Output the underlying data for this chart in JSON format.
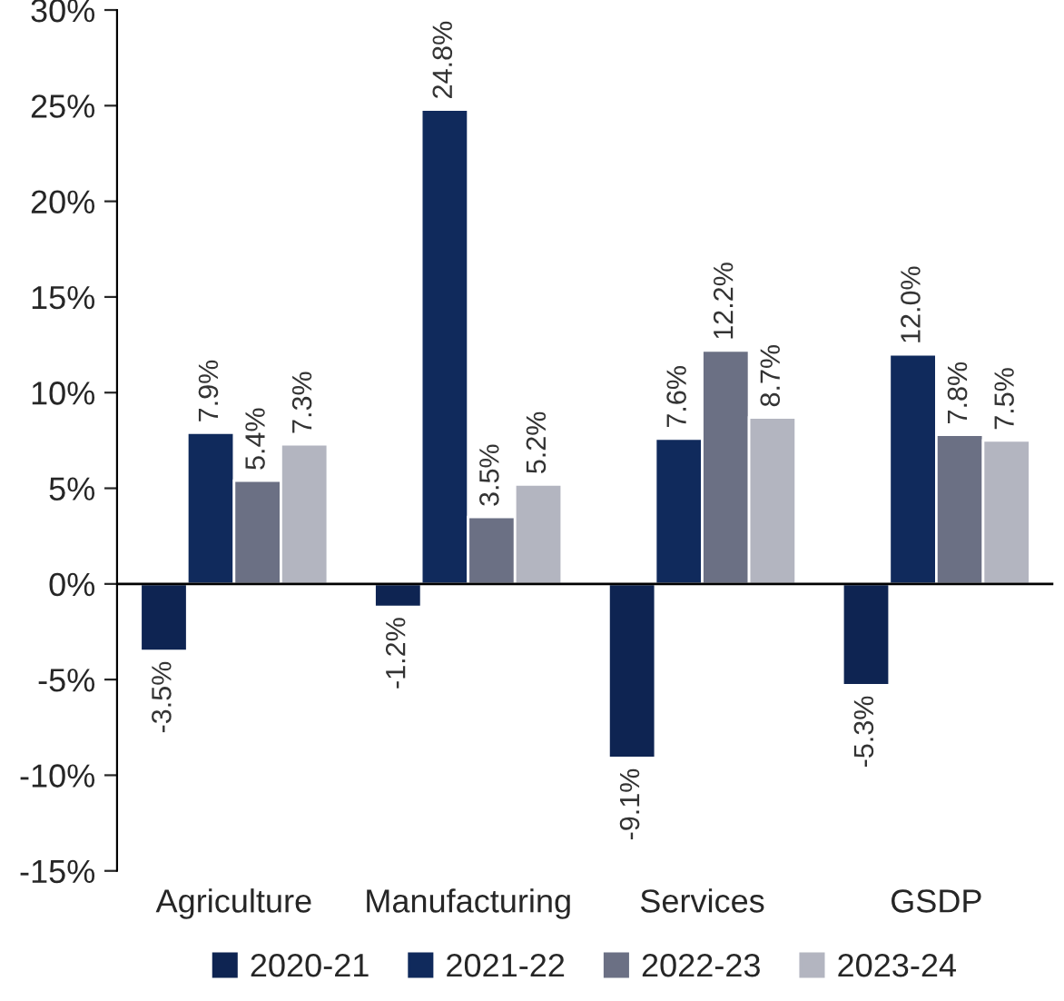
{
  "chart_data": {
    "type": "bar",
    "categories": [
      "Agriculture",
      "Manufacturing",
      "Services",
      "GSDP"
    ],
    "series": [
      {
        "name": "2020-21",
        "color": "#0e2452",
        "values": [
          -3.5,
          -1.2,
          -9.1,
          -5.3
        ],
        "value_labels": [
          "-3.5%",
          "-1.2%",
          "-9.1%",
          "-5.3%"
        ]
      },
      {
        "name": "2021-22",
        "color": "#102a5c",
        "values": [
          7.9,
          24.8,
          7.6,
          12.0
        ],
        "value_labels": [
          "7.9%",
          "24.8%",
          "7.6%",
          "12.0%"
        ]
      },
      {
        "name": "2022-23",
        "color": "#6b7084",
        "values": [
          5.4,
          3.5,
          12.2,
          7.8
        ],
        "value_labels": [
          "5.4%",
          "3.5%",
          "12.2%",
          "7.8%"
        ]
      },
      {
        "name": "2023-24",
        "color": "#b3b5c0",
        "values": [
          7.3,
          5.2,
          8.7,
          7.5
        ],
        "value_labels": [
          "7.3%",
          "5.2%",
          "8.7%",
          "7.5%"
        ]
      }
    ],
    "ylim": [
      -15,
      30
    ],
    "yticks": [
      {
        "value": -15,
        "label": "-15%"
      },
      {
        "value": -10,
        "label": "-10%"
      },
      {
        "value": -5,
        "label": "-5%"
      },
      {
        "value": 0,
        "label": "0%"
      },
      {
        "value": 5,
        "label": "5%"
      },
      {
        "value": 10,
        "label": "10%"
      },
      {
        "value": 15,
        "label": "15%"
      },
      {
        "value": 20,
        "label": "20%"
      },
      {
        "value": 25,
        "label": "25%"
      },
      {
        "value": 30,
        "label": "30%"
      }
    ],
    "ref_lines": [
      {
        "axis": "y",
        "value": 0,
        "color": "#000000"
      }
    ],
    "grid": false,
    "legend": "bottom"
  }
}
